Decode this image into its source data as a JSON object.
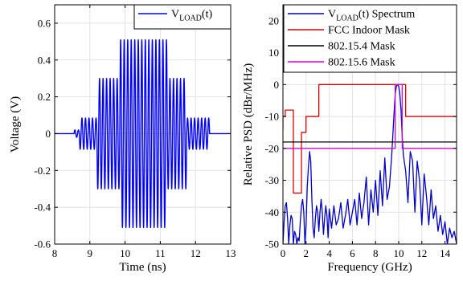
{
  "chart_data": [
    {
      "type": "line",
      "xlabel": "Time (ns)",
      "ylabel": "Voltage (V)",
      "xlim": [
        8,
        13
      ],
      "ylim": [
        -0.6,
        0.7
      ],
      "xticks": [
        8,
        9,
        10,
        11,
        12,
        13
      ],
      "yticks": [
        -0.6,
        -0.4,
        -0.2,
        0,
        0.2,
        0.4,
        0.6
      ],
      "grid": true,
      "legend_position": "top-right",
      "series": [
        {
          "name": "V_LOAD(t)",
          "legend_main": "V",
          "legend_sub": "LOAD",
          "legend_tail": "(t)",
          "color": "#0000ff",
          "waveform": {
            "carrier_frequency_ghz": 10,
            "baseline_v": 0,
            "start_ns": 8.55,
            "end_ns": 12.4,
            "segments": [
              {
                "t_start": 8.55,
                "t_end": 8.7,
                "amplitude": 0.02
              },
              {
                "t_start": 8.7,
                "t_end": 9.2,
                "amplitude": 0.085
              },
              {
                "t_start": 9.2,
                "t_end": 9.4,
                "amplitude": 0.3
              },
              {
                "t_start": 9.4,
                "t_end": 9.85,
                "amplitude": 0.3
              },
              {
                "t_start": 9.85,
                "t_end": 11.2,
                "amplitude": 0.51
              },
              {
                "t_start": 11.2,
                "t_end": 11.75,
                "amplitude": 0.3
              },
              {
                "t_start": 11.75,
                "t_end": 12.4,
                "amplitude": 0.085
              }
            ]
          }
        }
      ]
    },
    {
      "type": "line",
      "xlabel": "Frequency (GHz)",
      "ylabel": "Relative PSD (dBr/MHz)",
      "xlim": [
        0,
        15
      ],
      "ylim": [
        -50,
        25
      ],
      "xticks": [
        0,
        2,
        4,
        6,
        8,
        10,
        12,
        14
      ],
      "yticks": [
        -50,
        -40,
        -30,
        -20,
        -10,
        0,
        10,
        20
      ],
      "grid": true,
      "legend_position": "top-right",
      "series": [
        {
          "name": "V_LOAD(t) Spectrum",
          "legend_main": "V",
          "legend_sub": "LOAD",
          "legend_tail": "(t) Spectrum",
          "color": "#0000cc",
          "x": [
            0,
            0.1,
            0.2,
            0.3,
            0.4,
            0.5,
            0.6,
            0.7,
            0.8,
            0.9,
            1.0,
            1.1,
            1.2,
            1.3,
            1.4,
            1.5,
            1.6,
            1.7,
            1.8,
            1.9,
            2.0,
            2.1,
            2.2,
            2.3,
            2.4,
            2.5,
            2.6,
            2.7,
            2.8,
            2.9,
            3.0,
            3.1,
            3.2,
            3.3,
            3.4,
            3.5,
            3.6,
            3.7,
            3.8,
            3.9,
            4.0,
            4.2,
            4.4,
            4.6,
            4.8,
            5.0,
            5.2,
            5.4,
            5.6,
            5.8,
            6.0,
            6.2,
            6.4,
            6.6,
            6.8,
            7.0,
            7.2,
            7.4,
            7.6,
            7.8,
            8.0,
            8.2,
            8.4,
            8.6,
            8.8,
            9.0,
            9.2,
            9.4,
            9.6,
            9.7,
            9.8,
            9.9,
            10.0,
            10.1,
            10.2,
            10.3,
            10.4,
            10.6,
            10.8,
            11.0,
            11.2,
            11.4,
            11.6,
            11.8,
            12.0,
            12.2,
            12.4,
            12.6,
            12.8,
            13.0,
            13.2,
            13.4,
            13.6,
            13.8,
            14.0,
            14.2,
            14.4,
            14.6,
            14.8,
            15.0
          ],
          "y": [
            -50,
            -43,
            -38,
            -37,
            -42,
            -50,
            -44,
            -41,
            -42,
            -50,
            -46,
            -47,
            -50,
            -48,
            -49,
            -43,
            -38,
            -36,
            -40,
            -50,
            -44,
            -32,
            -26,
            -21,
            -24,
            -36,
            -45,
            -48,
            -42,
            -38,
            -40,
            -46,
            -40,
            -36,
            -40,
            -47,
            -42,
            -38,
            -41,
            -48,
            -39,
            -45,
            -38,
            -44,
            -42,
            -37,
            -45,
            -41,
            -36,
            -44,
            -40,
            -36,
            -44,
            -34,
            -42,
            -37,
            -29,
            -44,
            -33,
            -40,
            -30,
            -41,
            -27,
            -38,
            -23,
            -36,
            -32,
            -22,
            -9,
            -3,
            -0.5,
            0,
            -0.5,
            -3,
            -8,
            -16,
            -22,
            -27,
            -37,
            -21,
            -24,
            -40,
            -24,
            -30,
            -44,
            -28,
            -35,
            -44,
            -33,
            -42,
            -38,
            -46,
            -41,
            -47,
            -43,
            -50,
            -45,
            -48,
            -46,
            -50
          ]
        },
        {
          "name": "FCC Indoor Mask",
          "color": "#e00000",
          "x": [
            0,
            0,
            0.2,
            0.2,
            0.9,
            0.9,
            1.6,
            1.6,
            1.99,
            1.99,
            3.1,
            3.1,
            10.6,
            10.6,
            15
          ],
          "y": [
            -14,
            -10,
            -10,
            -8,
            -8,
            -34,
            -34,
            -15,
            -15,
            -10,
            -10,
            0,
            0,
            -10,
            -10
          ]
        },
        {
          "name": "802.15.4 Mask",
          "color": "#000000",
          "x": [
            0,
            15
          ],
          "y": [
            -18,
            -18
          ]
        },
        {
          "name": "802.15.6 Mask",
          "color": "#e000e0",
          "x": [
            0,
            9.7,
            9.7,
            10.3,
            10.3,
            15
          ],
          "y": [
            -20,
            -20,
            0,
            0,
            -20,
            -20
          ]
        }
      ]
    }
  ]
}
